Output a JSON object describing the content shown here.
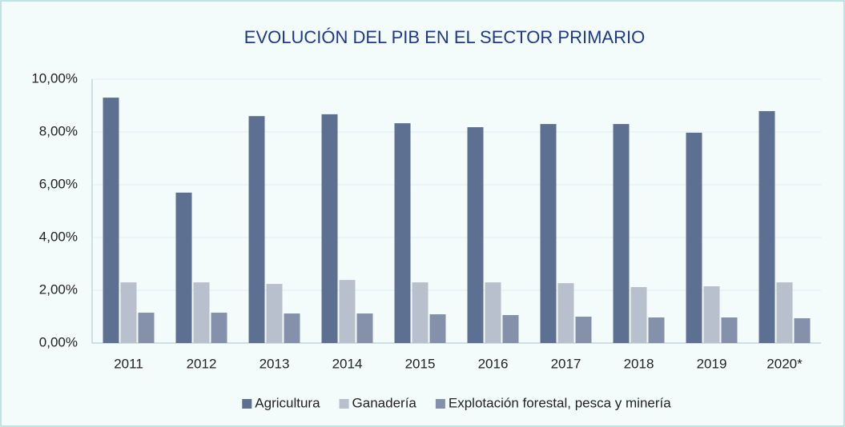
{
  "chart_data": {
    "type": "bar",
    "title": "EVOLUCIÓN DEL PIB EN EL SECTOR PRIMARIO",
    "categories": [
      "2011",
      "2012",
      "2013",
      "2014",
      "2015",
      "2016",
      "2017",
      "2018",
      "2019",
      "2020*"
    ],
    "series": [
      {
        "name": "Agricultura",
        "color": "#5d7091",
        "values": [
          9.3,
          5.7,
          8.6,
          8.67,
          8.33,
          8.18,
          8.3,
          8.3,
          7.97,
          8.79
        ]
      },
      {
        "name": "Ganadería",
        "color": "#b9c0cd",
        "values": [
          2.3,
          2.3,
          2.24,
          2.39,
          2.3,
          2.3,
          2.27,
          2.12,
          2.15,
          2.3
        ]
      },
      {
        "name": "Explotación forestal, pesca y minería",
        "color": "#8591aa",
        "values": [
          1.15,
          1.15,
          1.12,
          1.12,
          1.09,
          1.06,
          1.0,
          0.97,
          0.97,
          0.94
        ]
      }
    ],
    "ylim": [
      0,
      10
    ],
    "yticks": [
      {
        "value": 0,
        "label": "0,00%"
      },
      {
        "value": 2,
        "label": "2,00%"
      },
      {
        "value": 4,
        "label": "4,00%"
      },
      {
        "value": 6,
        "label": "6,00%"
      },
      {
        "value": 8,
        "label": "8,00%"
      },
      {
        "value": 10,
        "label": "10,00%"
      }
    ],
    "grid": true,
    "legend": "bottom"
  }
}
